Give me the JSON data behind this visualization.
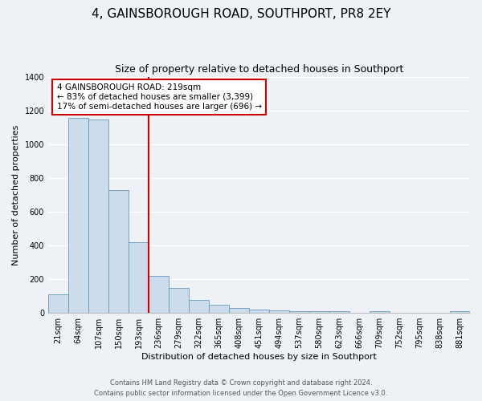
{
  "title": "4, GAINSBOROUGH ROAD, SOUTHPORT, PR8 2EY",
  "subtitle": "Size of property relative to detached houses in Southport",
  "xlabel": "Distribution of detached houses by size in Southport",
  "ylabel": "Number of detached properties",
  "bar_labels": [
    "21sqm",
    "64sqm",
    "107sqm",
    "150sqm",
    "193sqm",
    "236sqm",
    "279sqm",
    "322sqm",
    "365sqm",
    "408sqm",
    "451sqm",
    "494sqm",
    "537sqm",
    "580sqm",
    "623sqm",
    "666sqm",
    "709sqm",
    "752sqm",
    "795sqm",
    "838sqm",
    "881sqm"
  ],
  "bar_values": [
    110,
    1155,
    1148,
    730,
    420,
    220,
    148,
    75,
    50,
    30,
    20,
    17,
    12,
    10,
    10,
    0,
    10,
    0,
    0,
    0,
    10
  ],
  "bar_color": "#ccdcec",
  "bar_edge_color": "#6699bb",
  "vline_color": "#cc0000",
  "annotation_text": "4 GAINSBOROUGH ROAD: 219sqm\n← 83% of detached houses are smaller (3,399)\n17% of semi-detached houses are larger (696) →",
  "annotation_box_color": "white",
  "annotation_box_edge_color": "#cc0000",
  "ylim": [
    0,
    1400
  ],
  "yticks": [
    0,
    200,
    400,
    600,
    800,
    1000,
    1200,
    1400
  ],
  "footer1": "Contains HM Land Registry data © Crown copyright and database right 2024.",
  "footer2": "Contains public sector information licensed under the Open Government Licence v3.0.",
  "bg_color": "#eef2f7",
  "plot_bg_color": "#eef2f7",
  "grid_color": "#ffffff",
  "title_fontsize": 11,
  "subtitle_fontsize": 9,
  "ylabel_fontsize": 8,
  "xlabel_fontsize": 8,
  "tick_fontsize": 7,
  "annot_fontsize": 7.5
}
